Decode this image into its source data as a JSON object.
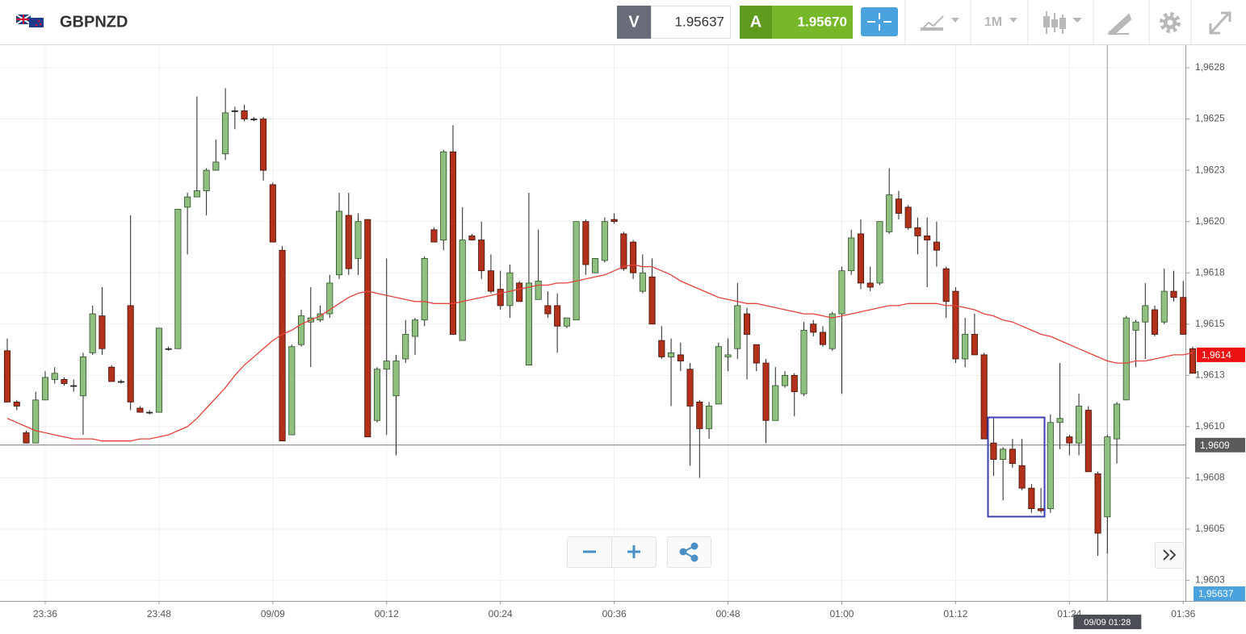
{
  "header": {
    "symbol": "GBPNZD",
    "bid_label": "V",
    "bid": "1.95637",
    "ask_label": "A",
    "ask": "1.95670",
    "timeframe": "1M"
  },
  "chart_data": {
    "type": "candlestick",
    "up_color": "#8fc07f",
    "down_color": "#b3301a",
    "grid": true,
    "categories": [
      null,
      null,
      null,
      null,
      "23:36",
      null,
      null,
      null,
      null,
      null,
      null,
      null,
      null,
      null,
      null,
      null,
      "23:48",
      null,
      null,
      null,
      null,
      null,
      null,
      null,
      null,
      null,
      null,
      null,
      "09/09",
      null,
      null,
      null,
      null,
      null,
      null,
      null,
      null,
      null,
      null,
      null,
      "00:12",
      null,
      null,
      null,
      null,
      null,
      null,
      null,
      null,
      null,
      null,
      null,
      "00:24",
      null,
      null,
      null,
      null,
      null,
      null,
      null,
      null,
      null,
      null,
      null,
      "00:36",
      null,
      null,
      null,
      null,
      null,
      null,
      null,
      null,
      null,
      null,
      null,
      "00:48",
      null,
      null,
      null,
      null,
      null,
      null,
      null,
      null,
      null,
      null,
      null,
      "01:00",
      null,
      null,
      null,
      null,
      null,
      null,
      null,
      null,
      null,
      null,
      null,
      "01:12",
      null,
      null,
      null,
      null,
      null,
      null,
      null,
      null,
      null,
      null,
      null,
      "01:24",
      null,
      null,
      null,
      null,
      null,
      null,
      null,
      null,
      null,
      null,
      null,
      "01:36",
      null
    ],
    "open": [
      1.96137,
      1.96112,
      1.96097,
      1.96092,
      1.96113,
      1.96123,
      1.96123,
      1.9612,
      1.96115,
      1.96136,
      1.96154,
      1.96129,
      1.96122,
      1.96159,
      1.96109,
      1.96107,
      1.96107,
      1.96138,
      1.96138,
      1.96207,
      1.96212,
      1.96215,
      1.96225,
      1.96233,
      1.96254,
      1.96254,
      1.9625,
      1.9625,
      1.96218,
      1.96186,
      1.96096,
      1.9614,
      1.96151,
      1.96152,
      1.96155,
      1.96174,
      1.96203,
      1.96182,
      1.96201,
      1.96103,
      1.96128,
      1.96115,
      1.96133,
      1.96144,
      1.96152,
      1.96196,
      1.96191,
      1.96234,
      1.96142,
      1.96193,
      1.96191,
      1.96176,
      1.96167,
      1.96159,
      1.9617,
      1.9613,
      1.96162,
      1.96159,
      1.96159,
      1.96149,
      1.96152,
      1.962,
      1.96175,
      1.96181,
      1.96201,
      1.96194,
      1.9619,
      1.96166,
      1.96173,
      1.96142,
      1.96134,
      1.96135,
      1.96128,
      1.96112,
      1.96099,
      1.96111,
      1.96134,
      1.96138,
      1.96155,
      1.9614,
      1.96131,
      1.96103,
      1.9612,
      1.96125,
      1.96116,
      1.9615,
      1.96146,
      1.96138,
      1.96155,
      1.96176,
      1.96194,
      1.9617,
      1.9617,
      1.96195,
      1.96211,
      1.96207,
      1.96197,
      1.96193,
      1.9619,
      1.96177,
      1.96166,
      1.96133,
      1.96145,
      1.96135,
      1.96092,
      1.96084,
      1.96089,
      1.96081,
      1.9607,
      1.9606,
      1.9606,
      1.96102,
      1.96095,
      1.96092,
      1.96108,
      1.96077,
      1.96056,
      1.96094,
      1.96113,
      1.96147,
      1.96151,
      1.96157,
      1.96151,
      1.96166,
      1.96163,
      1.96138
    ],
    "high": [
      1.96143,
      1.96113,
      1.96098,
      1.96117,
      1.96127,
      1.96129,
      1.96124,
      1.96123,
      1.96136,
      1.96159,
      1.96168,
      1.9613,
      1.96123,
      1.96203,
      1.9611,
      1.96108,
      1.96148,
      1.96139,
      1.96206,
      1.96214,
      1.96261,
      1.96226,
      1.9624,
      1.96265,
      1.96256,
      1.96257,
      1.96251,
      1.96251,
      1.96219,
      1.96188,
      1.9614,
      1.96157,
      1.96168,
      1.96159,
      1.96174,
      1.96214,
      1.96214,
      1.96204,
      1.96201,
      1.96129,
      1.96182,
      1.96135,
      1.96152,
      1.96153,
      1.96183,
      1.96197,
      1.96235,
      1.96247,
      1.96207,
      1.96194,
      1.962,
      1.96184,
      1.96176,
      1.96179,
      1.96171,
      1.96214,
      1.96196,
      1.96166,
      1.96165,
      1.96153,
      1.962,
      1.96201,
      1.96182,
      1.96202,
      1.96204,
      1.96195,
      1.96191,
      1.96184,
      1.96182,
      1.96149,
      1.96143,
      1.96141,
      1.96131,
      1.96113,
      1.96112,
      1.96141,
      1.96143,
      1.9617,
      1.96158,
      1.9614,
      1.96133,
      1.96129,
      1.96127,
      1.96126,
      1.96151,
      1.96152,
      1.96149,
      1.96156,
      1.96178,
      1.96196,
      1.96201,
      1.96178,
      1.962,
      1.96226,
      1.96215,
      1.96208,
      1.96202,
      1.96202,
      1.962,
      1.96178,
      1.96168,
      1.96153,
      1.96155,
      1.96136,
      1.96104,
      1.9609,
      1.96094,
      1.96094,
      1.96072,
      1.9607,
      1.96106,
      1.96131,
      1.96096,
      1.96116,
      1.9611,
      1.96078,
      1.96096,
      1.96112,
      1.96154,
      1.96152,
      1.9617,
      1.96159,
      1.96177,
      1.96176,
      1.96171,
      1.96139
    ],
    "low": [
      1.96112,
      1.96108,
      1.96092,
      1.96092,
      1.96113,
      1.96121,
      1.9612,
      1.96117,
      1.96096,
      1.96135,
      1.96135,
      1.96122,
      1.96121,
      1.96108,
      1.96107,
      1.96106,
      1.96107,
      1.96137,
      1.96138,
      1.96184,
      1.96212,
      1.96203,
      1.96225,
      1.9623,
      1.96245,
      1.96249,
      1.96249,
      1.9622,
      1.9619,
      1.96093,
      1.96096,
      1.96139,
      1.96129,
      1.96151,
      1.96153,
      1.96172,
      1.96174,
      1.96174,
      1.96095,
      1.96102,
      1.96096,
      1.96086,
      1.96131,
      1.96135,
      1.96149,
      1.9619,
      1.96186,
      1.96145,
      1.96142,
      1.96191,
      1.96172,
      1.96165,
      1.96157,
      1.96153,
      1.96161,
      1.9613,
      1.96162,
      1.96153,
      1.96136,
      1.96148,
      1.96152,
      1.96174,
      1.96175,
      1.9618,
      1.96199,
      1.96176,
      1.96172,
      1.96165,
      1.9615,
      1.96133,
      1.9611,
      1.96127,
      1.96081,
      1.96075,
      1.96094,
      1.96111,
      1.96127,
      1.96133,
      1.96123,
      1.96127,
      1.96092,
      1.96103,
      1.96119,
      1.96105,
      1.96115,
      1.96144,
      1.96139,
      1.96137,
      1.96116,
      1.96174,
      1.96167,
      1.96166,
      1.96169,
      1.96194,
      1.96201,
      1.96196,
      1.96184,
      1.96168,
      1.96178,
      1.96153,
      1.96131,
      1.96129,
      1.96135,
      1.96094,
      1.96076,
      1.96064,
      1.9608,
      1.96069,
      1.96058,
      1.96058,
      1.96058,
      1.96089,
      1.96086,
      1.96086,
      1.96078,
      1.96037,
      1.96038,
      1.96082,
      1.96113,
      1.96129,
      1.96133,
      1.96144,
      1.9615,
      1.96161,
      1.96145,
      1.96126
    ],
    "close": [
      1.96112,
      1.9611,
      1.96092,
      1.96113,
      1.96124,
      1.96126,
      1.96121,
      1.9612,
      1.96134,
      1.96155,
      1.96138,
      1.96122,
      1.96122,
      1.96112,
      1.96107,
      1.96107,
      1.96148,
      1.96138,
      1.96206,
      1.96212,
      1.96215,
      1.96225,
      1.96229,
      1.96253,
      1.96254,
      1.9625,
      1.9625,
      1.96225,
      1.9619,
      1.96093,
      1.96139,
      1.96154,
      1.96153,
      1.96155,
      1.9617,
      1.96205,
      1.96177,
      1.962,
      1.96095,
      1.96128,
      1.96132,
      1.96132,
      1.96145,
      1.96152,
      1.96182,
      1.9619,
      1.96234,
      1.96145,
      1.96191,
      1.96191,
      1.96176,
      1.96166,
      1.96159,
      1.96175,
      1.96161,
      1.9617,
      1.96171,
      1.96155,
      1.96149,
      1.96153,
      1.962,
      1.96179,
      1.96182,
      1.962,
      1.962,
      1.96177,
      1.96175,
      1.96175,
      1.9615,
      1.96134,
      1.96136,
      1.96132,
      1.9611,
      1.96099,
      1.9611,
      1.96139,
      1.96135,
      1.96159,
      1.96145,
      1.96131,
      1.96103,
      1.9612,
      1.96125,
      1.96117,
      1.96147,
      1.96146,
      1.9614,
      1.96155,
      1.96176,
      1.96192,
      1.9617,
      1.96168,
      1.962,
      1.96213,
      1.96204,
      1.96197,
      1.96193,
      1.96191,
      1.96186,
      1.96161,
      1.96133,
      1.96145,
      1.96135,
      1.96094,
      1.96084,
      1.96089,
      1.96082,
      1.9607,
      1.9606,
      1.96059,
      1.96102,
      1.96104,
      1.96092,
      1.9611,
      1.96078,
      1.96048,
      1.96095,
      1.96111,
      1.96153,
      1.96151,
      1.96159,
      1.96145,
      1.96166,
      1.96163,
      1.96145,
      1.96126
    ],
    "ma": {
      "color": "#e8413a",
      "values": [
        1.96104,
        1.96102,
        1.961,
        1.96098,
        1.96097,
        1.96096,
        1.96095,
        1.96094,
        1.96094,
        1.96094,
        1.96093,
        1.96093,
        1.96093,
        1.96093,
        1.96094,
        1.96094,
        1.96095,
        1.96096,
        1.96098,
        1.961,
        1.96104,
        1.96109,
        1.96114,
        1.96119,
        1.96125,
        1.9613,
        1.96134,
        1.96138,
        1.96142,
        1.96145,
        1.96147,
        1.9615,
        1.96152,
        1.96154,
        1.96157,
        1.9616,
        1.96163,
        1.96165,
        1.96166,
        1.96165,
        1.96164,
        1.96163,
        1.96162,
        1.96161,
        1.96161,
        1.9616,
        1.9616,
        1.9616,
        1.96161,
        1.96162,
        1.96163,
        1.96164,
        1.96165,
        1.96166,
        1.96167,
        1.96168,
        1.96169,
        1.96169,
        1.9617,
        1.9617,
        1.96171,
        1.96172,
        1.96173,
        1.96174,
        1.96176,
        1.96178,
        1.96179,
        1.96178,
        1.96178,
        1.96176,
        1.96174,
        1.96171,
        1.96169,
        1.96167,
        1.96165,
        1.96163,
        1.96162,
        1.96161,
        1.9616,
        1.9616,
        1.96159,
        1.96158,
        1.96157,
        1.96156,
        1.96155,
        1.96155,
        1.96154,
        1.96153,
        1.96154,
        1.96155,
        1.96156,
        1.96157,
        1.96158,
        1.96159,
        1.96159,
        1.9616,
        1.9616,
        1.9616,
        1.9616,
        1.96159,
        1.96159,
        1.96158,
        1.96157,
        1.96155,
        1.96154,
        1.96152,
        1.96151,
        1.96149,
        1.96147,
        1.96145,
        1.96144,
        1.96142,
        1.9614,
        1.96138,
        1.96136,
        1.96134,
        1.96132,
        1.96131,
        1.96131,
        1.96132,
        1.96132,
        1.96133,
        1.96134,
        1.96135,
        1.96135,
        1.96136
      ]
    },
    "ylim": [
      1.96015,
      1.96286
    ],
    "yticks": [
      {
        "value": 1.96275,
        "label": "1,9628"
      },
      {
        "value": 1.9625,
        "label": "1,9625"
      },
      {
        "value": 1.96225,
        "label": "1,9623"
      },
      {
        "value": 1.962,
        "label": "1,9620"
      },
      {
        "value": 1.96175,
        "label": "1,9618"
      },
      {
        "value": 1.9615,
        "label": "1,9615"
      },
      {
        "value": 1.96125,
        "label": "1,9613"
      },
      {
        "value": 1.961,
        "label": "1,9610"
      },
      {
        "value": 1.96075,
        "label": "1,9608"
      },
      {
        "value": 1.9605,
        "label": "1,9605"
      },
      {
        "value": 1.96025,
        "label": "1,9603"
      }
    ],
    "last_price": {
      "value": 1.96135,
      "label": "1,9614"
    },
    "crosshair": {
      "candle": 116,
      "label": "09/09 01:28",
      "price": 1.96091,
      "price_label": "1,9609"
    },
    "bid_tag": {
      "label": "1,95637"
    }
  }
}
